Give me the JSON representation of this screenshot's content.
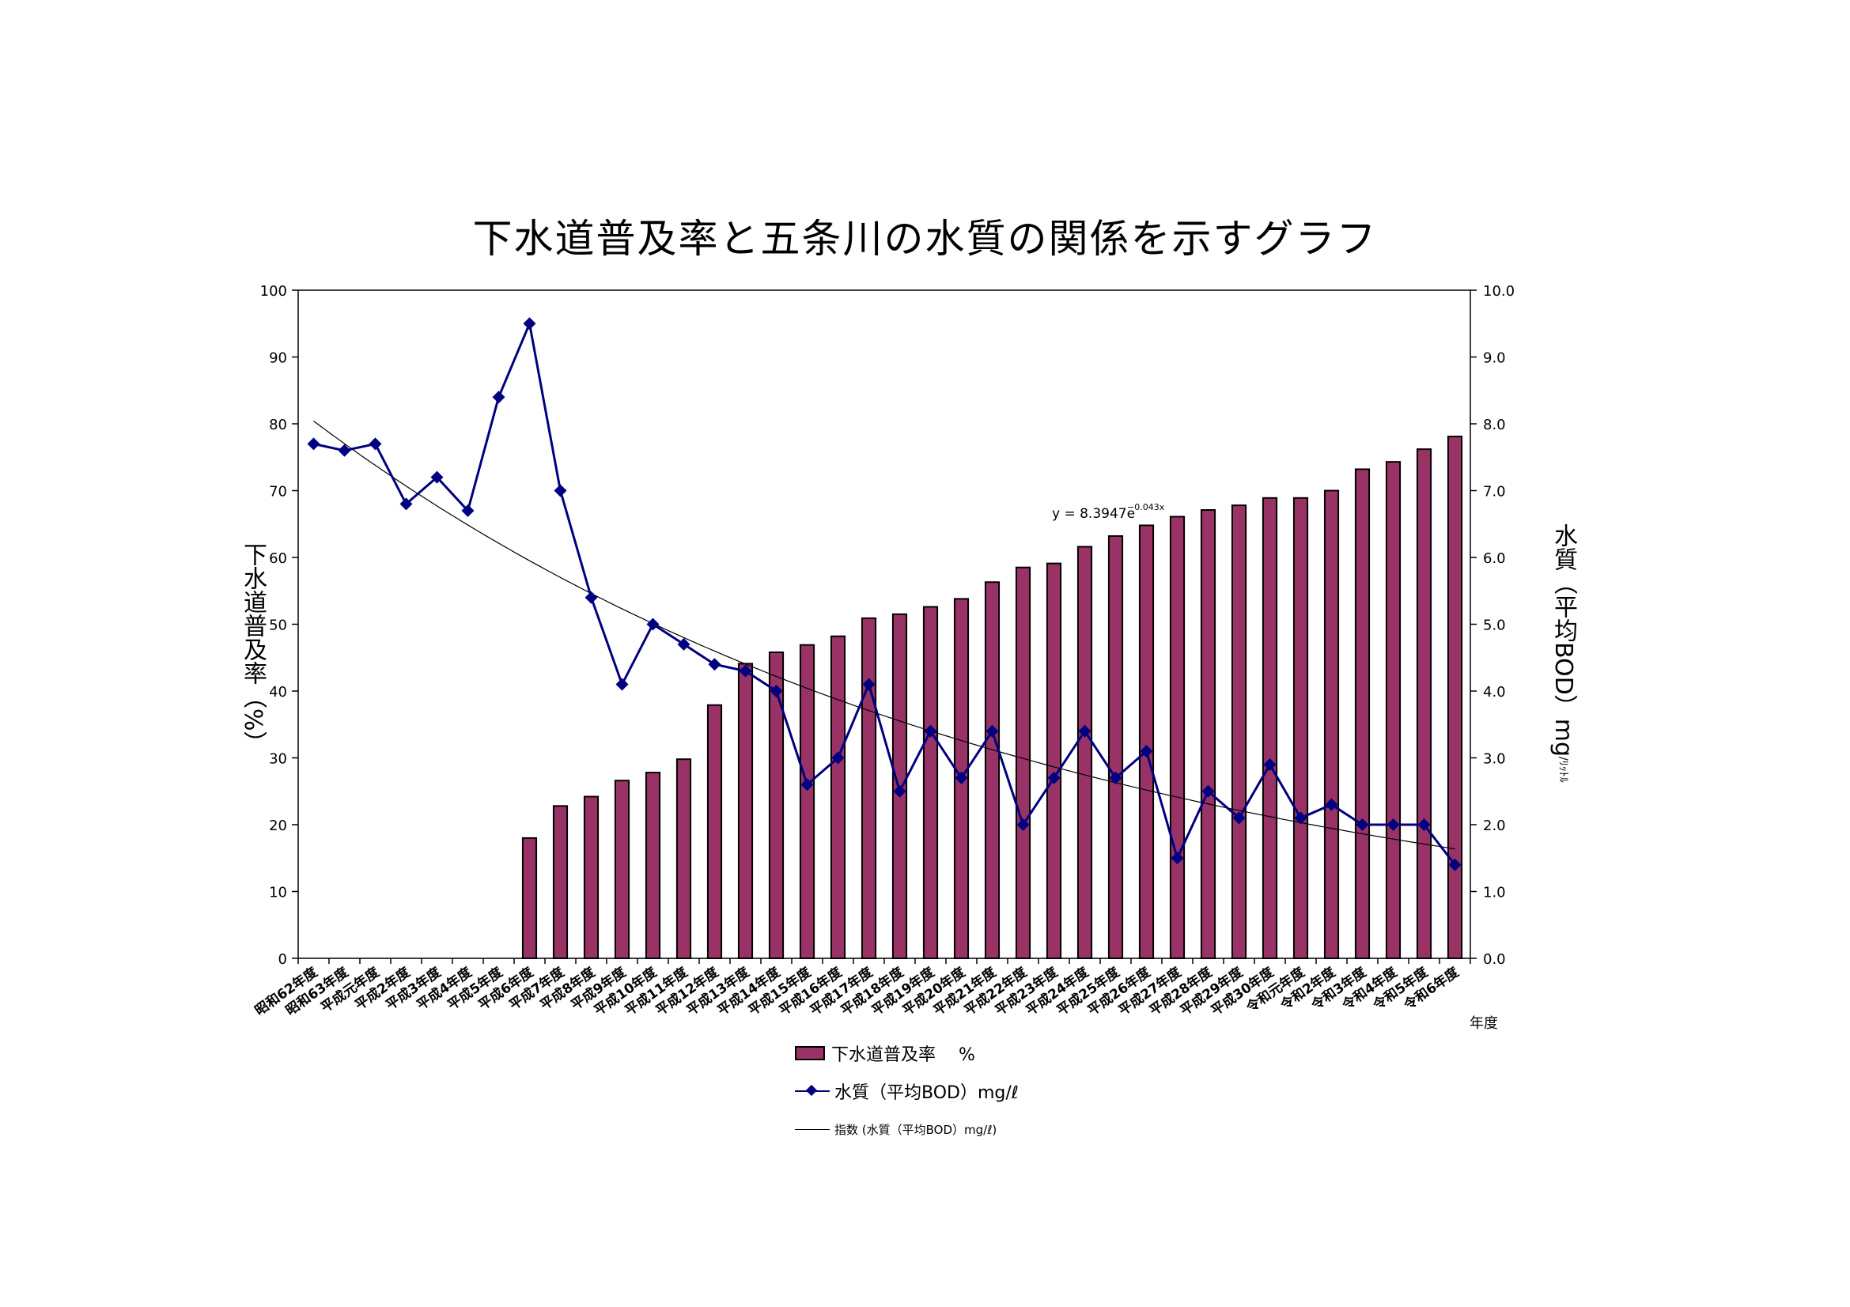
{
  "title": "下水道普及率と五条川の水質の関係を示すグラフ",
  "axes": {
    "left_label": "下水道普及率（%）",
    "right_label_main": "水質（平均BOD）mg",
    "right_label_unit": "/ﾘｯﾄﾙ",
    "x_unit": "年度",
    "left_ticks": [
      "0",
      "10",
      "20",
      "30",
      "40",
      "50",
      "60",
      "70",
      "80",
      "90",
      "100"
    ],
    "right_ticks": [
      "0.0",
      "1.0",
      "2.0",
      "3.0",
      "4.0",
      "5.0",
      "6.0",
      "7.0",
      "8.0",
      "9.0",
      "10.0"
    ]
  },
  "legend": {
    "bar": "下水道普及率　 %",
    "line": "水質（平均BOD）mg/ℓ",
    "trend": "指数 (水質（平均BOD）mg/ℓ)"
  },
  "trend_equation": "y = 8.3947e",
  "trend_exponent": "−0.043x",
  "colors": {
    "bar": "#993366",
    "line": "#000080",
    "trend": "#000000"
  },
  "chart_data": {
    "type": "bar+line",
    "title": "下水道普及率と五条川の水質の関係を示すグラフ",
    "xlabel": "年度",
    "ylabel": "下水道普及率（%）",
    "y2label": "水質（平均BOD）mg/ℓ",
    "ylim": [
      0,
      100
    ],
    "y2lim": [
      0,
      10
    ],
    "grid": false,
    "legend_position": "bottom",
    "categories": [
      "昭和62年度",
      "昭和63年度",
      "平成元年度",
      "平成2年度",
      "平成3年度",
      "平成4年度",
      "平成5年度",
      "平成6年度",
      "平成7年度",
      "平成8年度",
      "平成9年度",
      "平成10年度",
      "平成11年度",
      "平成12年度",
      "平成13年度",
      "平成14年度",
      "平成15年度",
      "平成16年度",
      "平成17年度",
      "平成18年度",
      "平成19年度",
      "平成20年度",
      "平成21年度",
      "平成22年度",
      "平成23年度",
      "平成24年度",
      "平成25年度",
      "平成26年度",
      "平成27年度",
      "平成28年度",
      "平成29年度",
      "平成30年度",
      "令和元年度",
      "令和2年度",
      "令和3年度",
      "令和4年度",
      "令和5年度",
      "令和6年度"
    ],
    "series": [
      {
        "name": "下水道普及率 %",
        "type": "bar",
        "axis": "left",
        "values": [
          null,
          null,
          null,
          null,
          null,
          null,
          null,
          18.0,
          22.8,
          24.2,
          26.6,
          27.8,
          29.8,
          37.9,
          44.1,
          45.8,
          46.9,
          48.2,
          50.9,
          51.5,
          52.6,
          53.8,
          56.3,
          58.5,
          59.1,
          61.6,
          63.2,
          64.8,
          66.1,
          67.1,
          67.8,
          68.9,
          68.9,
          70.0,
          73.2,
          74.3,
          76.2,
          78.1
        ]
      },
      {
        "name": "水質（平均BOD）mg/ℓ",
        "type": "line",
        "axis": "right",
        "marker": "diamond",
        "values": [
          7.7,
          7.6,
          7.7,
          6.8,
          7.2,
          6.7,
          8.4,
          9.5,
          7.0,
          5.4,
          4.1,
          5.0,
          4.7,
          4.4,
          4.3,
          4.0,
          2.6,
          3.0,
          4.1,
          2.5,
          3.4,
          2.7,
          3.4,
          2.0,
          2.7,
          3.4,
          2.7,
          3.1,
          1.5,
          2.5,
          2.1,
          2.9,
          2.1,
          2.3,
          2.0,
          2.0,
          2.0,
          1.4
        ]
      },
      {
        "name": "指数 (水質（平均BOD）mg/ℓ)",
        "type": "trendline",
        "axis": "right",
        "equation": "y = 8.3947e^(-0.043x)",
        "a": 8.3947,
        "b": -0.043
      }
    ],
    "annotations": [
      "y = 8.3947e^-0.043x"
    ]
  }
}
